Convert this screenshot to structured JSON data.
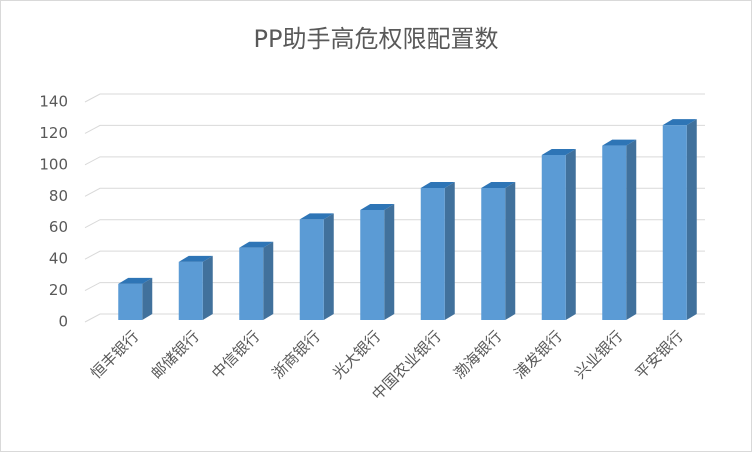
{
  "chart_data": {
    "type": "bar",
    "title": "PP助手高危权限配置数",
    "categories": [
      "恒丰银行",
      "邮储银行",
      "中信银行",
      "浙商银行",
      "光大银行",
      "中国农业银行",
      "渤海银行",
      "浦发银行",
      "兴业银行",
      "平安银行"
    ],
    "values": [
      23,
      37,
      46,
      64,
      70,
      84,
      84,
      105,
      111,
      124
    ],
    "color": "#5b9bd5",
    "ylim": [
      0,
      140
    ],
    "yticks": [
      0,
      20,
      40,
      60,
      80,
      100,
      120,
      140
    ],
    "grid": true
  }
}
